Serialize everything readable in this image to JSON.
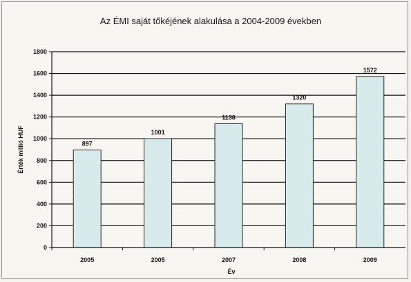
{
  "chart_data": {
    "type": "bar",
    "title": "Az ÉMI saját tőkéjének alakulása a 2004-2009 években",
    "xlabel": "Év",
    "ylabel": "Érték millió HUF",
    "categories": [
      "2005",
      "2005",
      "2007",
      "2008",
      "2009"
    ],
    "values": [
      897,
      1001,
      1138,
      1320,
      1572
    ],
    "data_labels": [
      "897",
      "1001",
      "1138",
      "1320",
      "1572"
    ],
    "ylim": [
      0,
      1800
    ],
    "yticks": [
      0,
      200,
      400,
      600,
      800,
      1000,
      1200,
      1400,
      1600,
      1800
    ],
    "grid": true,
    "legend": "none",
    "colors": {
      "bar": "#d7ebec",
      "bar_edge": "#222222",
      "grid": "#111111"
    }
  }
}
